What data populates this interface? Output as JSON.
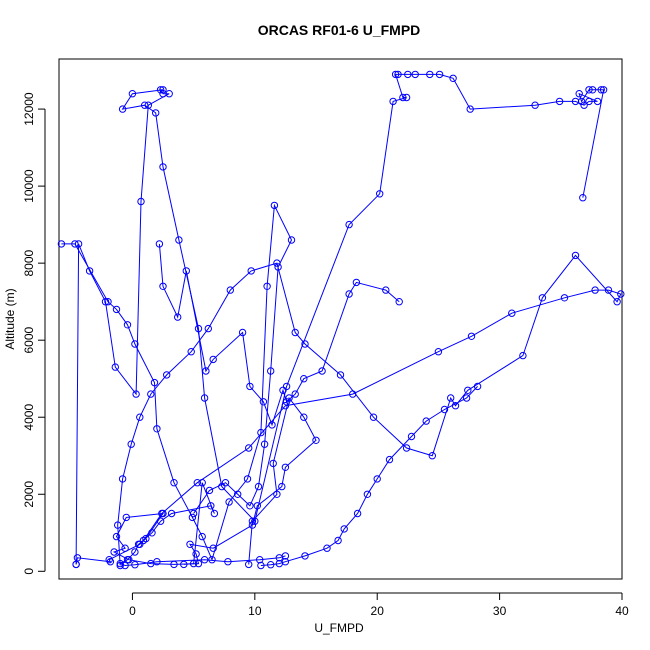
{
  "chart_data": {
    "type": "line",
    "title": "ORCAS RF01-6 U_FMPD",
    "xlabel": "U_FMPD",
    "ylabel": "Altitude (m)",
    "xlim": [
      -6,
      40
    ],
    "ylim": [
      -200,
      13300
    ],
    "xticks": [
      0,
      10,
      20,
      30,
      40
    ],
    "yticks": [
      0,
      2000,
      4000,
      6000,
      8000,
      10000,
      12000
    ],
    "xtick_labels": [
      "0",
      "10",
      "20",
      "30",
      "40"
    ],
    "ytick_labels": [
      "0",
      "2000",
      "4000",
      "6000",
      "8000",
      "10000",
      "12000"
    ],
    "grid": false,
    "legend": "none",
    "line_color": "#0000ff",
    "marker": "open-circle",
    "series": [
      {
        "x": [
          -4.6,
          -4.5,
          -1.8,
          -1.9,
          0.6,
          1.1,
          2.5,
          -0.5,
          -1.3,
          -0.6,
          -1.5,
          -0.3,
          1.5,
          3.4,
          5.4,
          5.2,
          4.7,
          6.6,
          9.8,
          10.2,
          12.2,
          12.5,
          15.0,
          14.0,
          12.8,
          11.5,
          11.8,
          9.8,
          9.5
        ],
        "y": [
          180,
          350,
          250,
          300,
          700,
          850,
          1500,
          1400,
          900,
          600,
          500,
          300,
          200,
          180,
          200,
          450,
          700,
          600,
          1200,
          1700,
          2200,
          2700,
          3400,
          4000,
          4500,
          2800,
          2000,
          1300,
          180
        ]
      },
      {
        "x": [
          -1.0,
          -1.2,
          -0.8,
          -0.1,
          0.6,
          1.5,
          2.8,
          4.8,
          6.2,
          8.0,
          9.7,
          11.8,
          13.3,
          14.1,
          17.0,
          19.7,
          22.4,
          24.5,
          26.0,
          26.4,
          27.4,
          31.9,
          33.5,
          36.2,
          39.6,
          39.9,
          38.9,
          37.8,
          35.3,
          31.0,
          27.7,
          25.0,
          18.0,
          12.5,
          9.5,
          5.3,
          2.4,
          0.9
        ],
        "y": [
          150,
          1200,
          2400,
          3300,
          4000,
          4600,
          5100,
          5700,
          6300,
          7300,
          7800,
          8000,
          6200,
          5900,
          5100,
          4000,
          3200,
          3000,
          4500,
          4300,
          4700,
          5600,
          7100,
          8200,
          7000,
          7200,
          7300,
          7300,
          7100,
          6700,
          6100,
          5700,
          4600,
          4300,
          3200,
          2300,
          1500,
          800
        ]
      },
      {
        "x": [
          -4.6,
          -4.4,
          -3.5,
          -2.2,
          -1.4,
          0.3,
          0.7,
          1.3,
          3.0,
          2.5,
          2.3,
          2.5,
          0.0,
          -0.8,
          1.0,
          1.9,
          2.5,
          3.8,
          5.4,
          5.9,
          7.3,
          10.0,
          12.6,
          17.7,
          20.2,
          21.3,
          22.4,
          22.1,
          21.5,
          21.7,
          22.5,
          23.1,
          24.3,
          25.1,
          26.2,
          27.6,
          32.9,
          34.9,
          36.2,
          36.9,
          37.3,
          38.0,
          36.5,
          36.7,
          37.3,
          37.6,
          38.3,
          38.5,
          36.8
        ],
        "y": [
          180,
          8500,
          7800,
          7000,
          5300,
          4600,
          9600,
          12100,
          12400,
          12400,
          12500,
          12500,
          12400,
          12000,
          12100,
          11900,
          10500,
          8600,
          6300,
          4500,
          2200,
          1300,
          4800,
          9000,
          9800,
          12200,
          12300,
          12300,
          12900,
          12900,
          12900,
          12900,
          12900,
          12900,
          12800,
          12000,
          12100,
          12200,
          12200,
          12100,
          12200,
          12200,
          12400,
          12200,
          12500,
          12500,
          12500,
          12500,
          9700
        ]
      },
      {
        "x": [
          -5.8,
          -4.7,
          -2.0,
          -1.3,
          -0.4,
          0.2,
          1.8,
          2.0,
          3.4,
          4.9,
          5.7,
          6.5,
          7.9,
          9.4,
          10.5,
          11.0,
          11.6,
          13.0,
          11.9,
          11.3,
          10.8,
          10.3,
          9.6,
          8.6,
          7.6,
          6.3,
          5.0
        ],
        "y": [
          8500,
          8500,
          7000,
          6800,
          6400,
          5900,
          4900,
          3700,
          2300,
          1400,
          900,
          300,
          1800,
          2400,
          3600,
          7400,
          9500,
          8600,
          7900,
          5200,
          3300,
          2200,
          1700,
          2000,
          2300,
          2100,
          1500
        ]
      },
      {
        "x": [
          2.2,
          2.5,
          3.7,
          4.4,
          6.0,
          6.6,
          9.0,
          9.6,
          10.7,
          11.4,
          12.3,
          12.6,
          13.3,
          14.0,
          15.5,
          17.7,
          18.3,
          20.7,
          21.8
        ],
        "y": [
          8500,
          7400,
          6600,
          7800,
          5200,
          5500,
          6200,
          4800,
          4400,
          3800,
          4700,
          4400,
          4600,
          5000,
          5200,
          7200,
          7500,
          7300,
          7000
        ]
      },
      {
        "x": [
          4.2,
          5.0,
          5.7,
          6.7,
          6.4,
          3.2,
          2.3,
          1.6,
          0.5,
          0.2,
          -0.4,
          -1.0,
          -0.6,
          0.2,
          2.0,
          5.9,
          7.8,
          10.4,
          12.0,
          12.5
        ],
        "y": [
          180,
          200,
          2300,
          1500,
          1700,
          1500,
          1300,
          1000,
          700,
          500,
          300,
          200,
          150,
          170,
          250,
          300,
          250,
          300,
          350,
          400
        ]
      },
      {
        "x": [
          10.5,
          11.3,
          12.0,
          12.5,
          14.1,
          15.9,
          16.8,
          17.3,
          18.4,
          19.2,
          20.0,
          21.0,
          22.8,
          24.0,
          25.5,
          27.3,
          28.2
        ],
        "y": [
          150,
          170,
          200,
          250,
          400,
          600,
          800,
          1100,
          1500,
          2000,
          2400,
          2900,
          3500,
          3900,
          4200,
          4500,
          4800
        ]
      }
    ]
  }
}
